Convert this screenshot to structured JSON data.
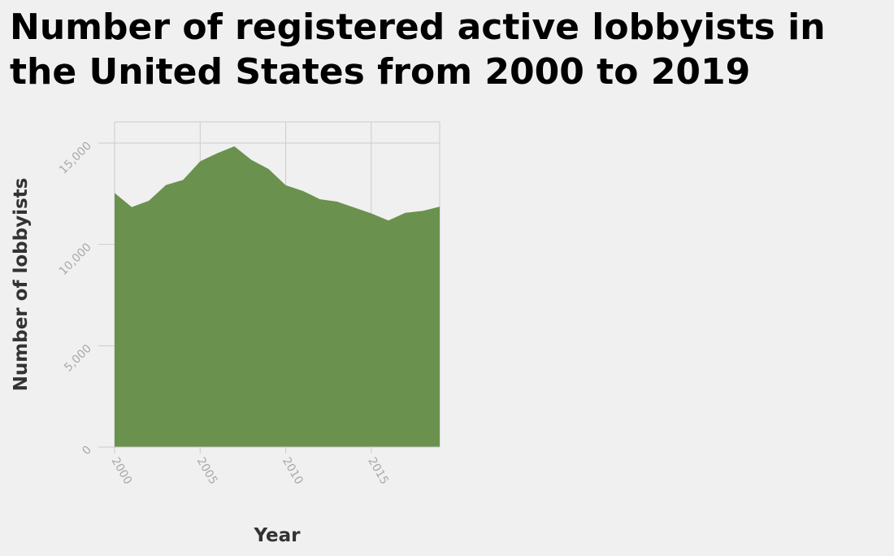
{
  "chart_data": {
    "type": "area",
    "title": "Number of registered active lobbyists in the United States from 2000 to 2019",
    "xlabel": "Year",
    "ylabel": "Number of lobbyists",
    "x": [
      2000,
      2001,
      2002,
      2003,
      2004,
      2005,
      2006,
      2007,
      2008,
      2009,
      2010,
      2011,
      2012,
      2013,
      2014,
      2015,
      2016,
      2017,
      2018,
      2019
    ],
    "y": [
      12540,
      11840,
      12150,
      12930,
      13180,
      14100,
      14500,
      14840,
      14170,
      13720,
      12920,
      12640,
      12230,
      12110,
      11820,
      11530,
      11180,
      11560,
      11650,
      11860
    ],
    "x_ticks": [
      "2000",
      "2005",
      "2010",
      "2015"
    ],
    "y_ticks": [
      "0",
      "5,000",
      "10,000",
      "15,000"
    ],
    "xlim": [
      2000,
      2019
    ],
    "ylim": [
      0,
      16000
    ],
    "grid": true,
    "fill_color": "#6b914e",
    "grid_color": "#cccccc",
    "background_color": "#f0f0f0"
  }
}
